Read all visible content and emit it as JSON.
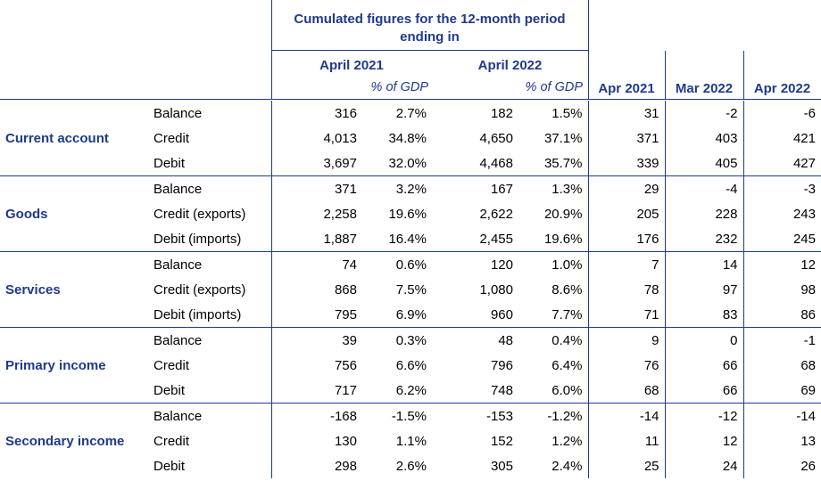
{
  "header": {
    "cumulated_title_line1": "Cumulated figures for the 12-month period",
    "cumulated_title_line2": "ending in",
    "period1": "April 2021",
    "period2": "April 2022",
    "pct_gdp_1": "% of GDP",
    "pct_gdp_2": "% of GDP",
    "month1": "Apr 2021",
    "month2": "Mar 2022",
    "month3": "Apr 2022"
  },
  "table": {
    "groups": [
      {
        "category": "Current account",
        "rows": [
          {
            "label": "Balance",
            "v2021": "316",
            "p2021": "2.7%",
            "v2022": "182",
            "p2022": "1.5%",
            "apr21": "31",
            "mar22": "-2",
            "apr22": "-6"
          },
          {
            "label": "Credit",
            "v2021": "4,013",
            "p2021": "34.8%",
            "v2022": "4,650",
            "p2022": "37.1%",
            "apr21": "371",
            "mar22": "403",
            "apr22": "421"
          },
          {
            "label": "Debit",
            "v2021": "3,697",
            "p2021": "32.0%",
            "v2022": "4,468",
            "p2022": "35.7%",
            "apr21": "339",
            "mar22": "405",
            "apr22": "427"
          }
        ]
      },
      {
        "category": "Goods",
        "rows": [
          {
            "label": "Balance",
            "v2021": "371",
            "p2021": "3.2%",
            "v2022": "167",
            "p2022": "1.3%",
            "apr21": "29",
            "mar22": "-4",
            "apr22": "-3"
          },
          {
            "label": "Credit (exports)",
            "v2021": "2,258",
            "p2021": "19.6%",
            "v2022": "2,622",
            "p2022": "20.9%",
            "apr21": "205",
            "mar22": "228",
            "apr22": "243"
          },
          {
            "label": "Debit (imports)",
            "v2021": "1,887",
            "p2021": "16.4%",
            "v2022": "2,455",
            "p2022": "19.6%",
            "apr21": "176",
            "mar22": "232",
            "apr22": "245"
          }
        ]
      },
      {
        "category": "Services",
        "rows": [
          {
            "label": "Balance",
            "v2021": "74",
            "p2021": "0.6%",
            "v2022": "120",
            "p2022": "1.0%",
            "apr21": "7",
            "mar22": "14",
            "apr22": "12"
          },
          {
            "label": "Credit (exports)",
            "v2021": "868",
            "p2021": "7.5%",
            "v2022": "1,080",
            "p2022": "8.6%",
            "apr21": "78",
            "mar22": "97",
            "apr22": "98"
          },
          {
            "label": "Debit (imports)",
            "v2021": "795",
            "p2021": "6.9%",
            "v2022": "960",
            "p2022": "7.7%",
            "apr21": "71",
            "mar22": "83",
            "apr22": "86"
          }
        ]
      },
      {
        "category": "Primary income",
        "rows": [
          {
            "label": "Balance",
            "v2021": "39",
            "p2021": "0.3%",
            "v2022": "48",
            "p2022": "0.4%",
            "apr21": "9",
            "mar22": "0",
            "apr22": "-1"
          },
          {
            "label": "Credit",
            "v2021": "756",
            "p2021": "6.6%",
            "v2022": "796",
            "p2022": "6.4%",
            "apr21": "76",
            "mar22": "66",
            "apr22": "68"
          },
          {
            "label": "Debit",
            "v2021": "717",
            "p2021": "6.2%",
            "v2022": "748",
            "p2022": "6.0%",
            "apr21": "68",
            "mar22": "66",
            "apr22": "69"
          }
        ]
      },
      {
        "category": "Secondary income",
        "rows": [
          {
            "label": "Balance",
            "v2021": "-168",
            "p2021": "-1.5%",
            "v2022": "-153",
            "p2022": "-1.2%",
            "apr21": "-14",
            "mar22": "-12",
            "apr22": "-14"
          },
          {
            "label": "Credit",
            "v2021": "130",
            "p2021": "1.1%",
            "v2022": "152",
            "p2022": "1.2%",
            "apr21": "11",
            "mar22": "12",
            "apr22": "13"
          },
          {
            "label": "Debit",
            "v2021": "298",
            "p2021": "2.6%",
            "v2022": "305",
            "p2022": "2.4%",
            "apr21": "25",
            "mar22": "24",
            "apr22": "26"
          }
        ]
      }
    ]
  }
}
